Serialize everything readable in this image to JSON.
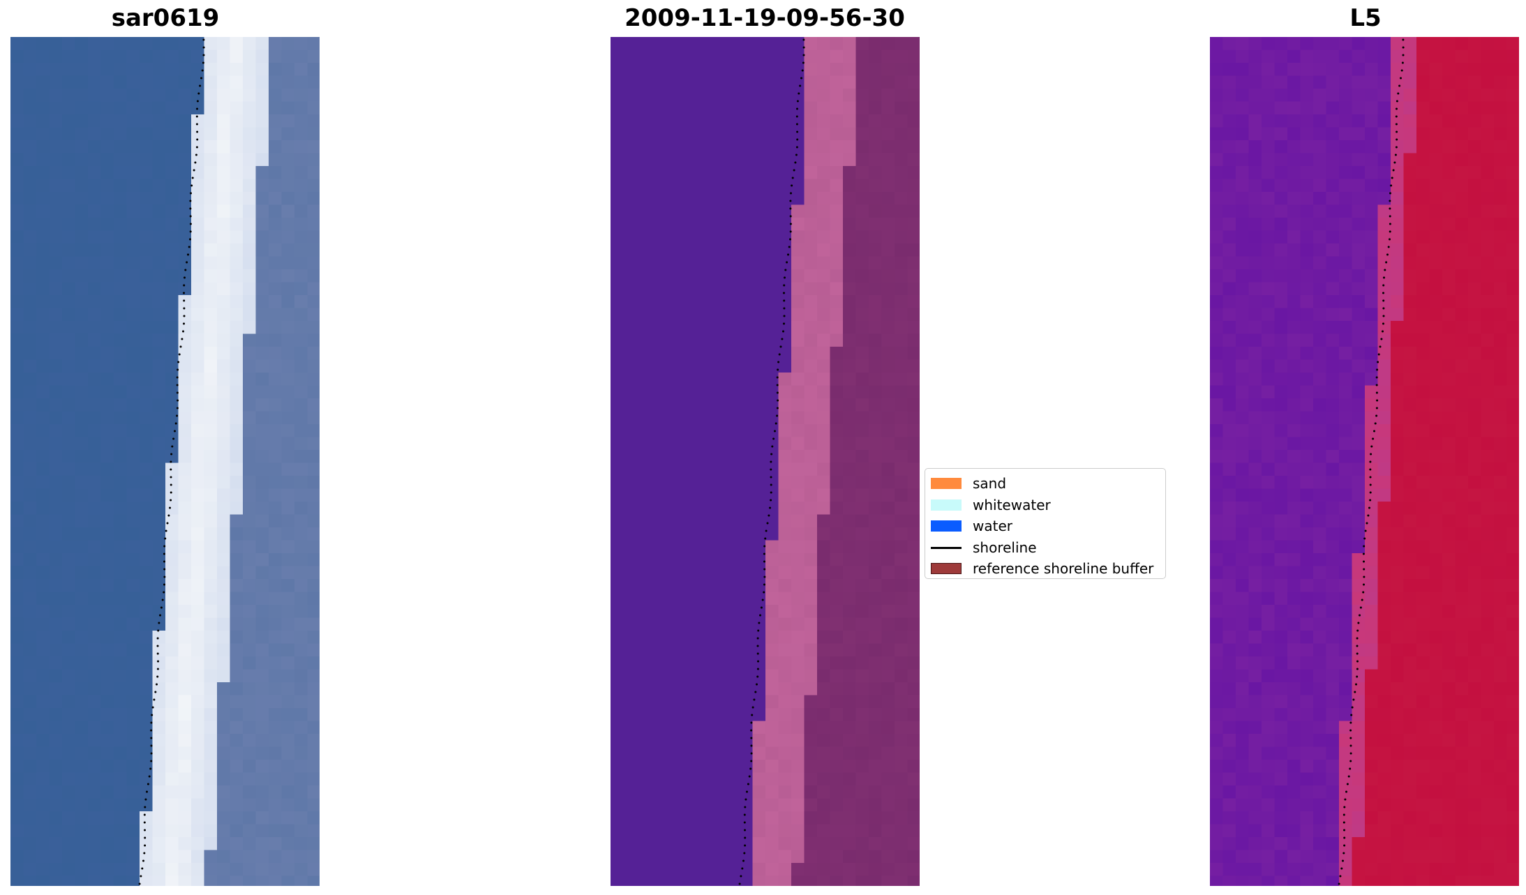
{
  "panels": [
    {
      "title": "sar0619",
      "image": "rgb-satellite-composite",
      "colors": {
        "water": "#3a609a",
        "bright": "#f1f4f8",
        "land": "#5f78a8"
      }
    },
    {
      "title": "2009-11-19-09-56-30",
      "image": "classified-overlay",
      "colors": {
        "water": "#552196",
        "sand": "#c0639a",
        "land": "#7a2c6e"
      }
    },
    {
      "title": "L5",
      "image": "index-heatmap",
      "colors": {
        "water": "#6a17a3",
        "mid": "#c8387a",
        "land": "#c41040"
      }
    }
  ],
  "legend": {
    "items": [
      {
        "label": "sand",
        "color": "#ff8a3d",
        "kind": "patch"
      },
      {
        "label": "whitewater",
        "color": "#c8fafa",
        "kind": "patch"
      },
      {
        "label": "water",
        "color": "#0a5cff",
        "kind": "patch"
      },
      {
        "label": "shoreline",
        "color": "#000000",
        "kind": "line"
      },
      {
        "label": "reference shoreline buffer",
        "color": "#9e3a3a",
        "kind": "patch-edged"
      }
    ]
  }
}
